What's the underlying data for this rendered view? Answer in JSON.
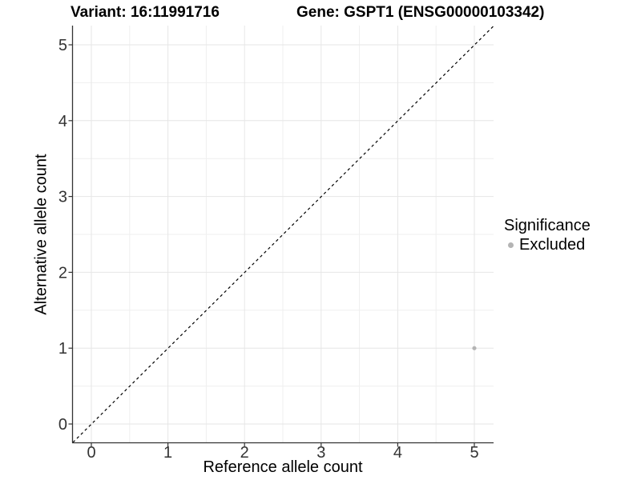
{
  "titles": {
    "variant": "Variant: 16:11991716",
    "gene": "Gene: GSPT1 (ENSG00000103342)"
  },
  "legend": {
    "title": "Significance",
    "items": [
      {
        "label": "Excluded",
        "color": "#b4b4b4"
      }
    ]
  },
  "chart_data": {
    "type": "scatter",
    "title": "Variant: 16:11991716   Gene: GSPT1 (ENSG00000103342)",
    "xlabel": "Reference allele count",
    "ylabel": "Alternative allele count",
    "xlim": [
      -0.25,
      5.25
    ],
    "ylim": [
      -0.25,
      5.25
    ],
    "x_ticks": [
      0,
      1,
      2,
      3,
      4,
      5
    ],
    "y_ticks": [
      0,
      1,
      2,
      3,
      4,
      5
    ],
    "minor_ticks": [
      0.5,
      1.5,
      2.5,
      3.5,
      4.5
    ],
    "grid": true,
    "legend_position": "right",
    "series": [
      {
        "name": "Excluded",
        "color": "#b4b4b4",
        "points": [
          {
            "x": 5,
            "y": 1
          }
        ]
      }
    ],
    "reference_line": {
      "type": "identity",
      "style": "dashed",
      "color": "#000000",
      "from": [
        -0.25,
        -0.25
      ],
      "to": [
        5.25,
        5.25
      ]
    },
    "colors": {
      "gridline_major": "#e6e6e6",
      "gridline_minor": "#efefef",
      "axis_line": "#333333",
      "tick_label": "#333333",
      "point": "#b4b4b4"
    }
  }
}
